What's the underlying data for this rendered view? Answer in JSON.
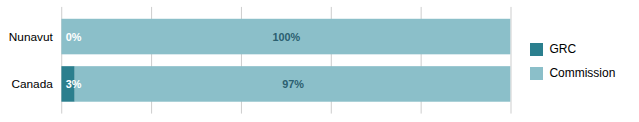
{
  "chart_data": {
    "type": "bar",
    "orientation": "horizontal",
    "stacked": true,
    "categories": [
      "Canada",
      "Nunavut"
    ],
    "series": [
      {
        "name": "GRC",
        "color": "#2B7F8E",
        "values": [
          3,
          0
        ],
        "value_labels": [
          "3%",
          "0%"
        ]
      },
      {
        "name": "Commission",
        "color": "#8BBFC9",
        "values": [
          97,
          100
        ],
        "value_labels": [
          "97%",
          "100%"
        ]
      }
    ],
    "xlim": [
      0,
      100
    ],
    "xticks": [
      0,
      20,
      40,
      60,
      80,
      100
    ],
    "grid": true,
    "legend": "right",
    "tick_labels": "y",
    "data_labels": true
  }
}
